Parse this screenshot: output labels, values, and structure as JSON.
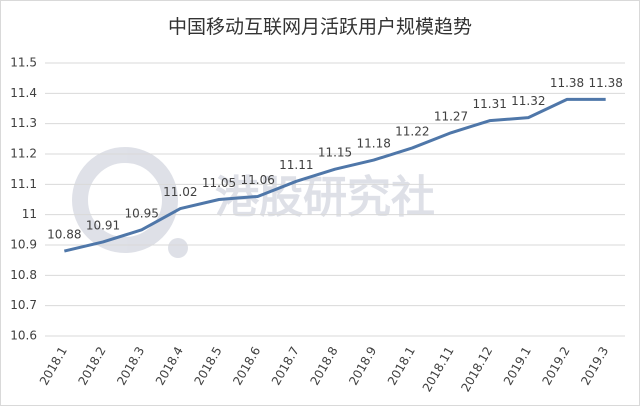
{
  "chart_data": {
    "type": "line",
    "title": "中国移动互联网月活跃用户规模趋势",
    "watermark": "港股研究社",
    "categories": [
      "2018.1",
      "2018.2",
      "2018.3",
      "2018.4",
      "2018.5",
      "2018.6",
      "2018.7",
      "2018.8",
      "2018.9",
      "2018.1",
      "2018.11",
      "2018.12",
      "2019.1",
      "2019.2",
      "2019.3"
    ],
    "values": [
      10.88,
      10.91,
      10.95,
      11.02,
      11.05,
      11.06,
      11.11,
      11.15,
      11.18,
      11.22,
      11.27,
      11.31,
      11.32,
      11.38,
      11.38
    ],
    "color": "#4f77a9",
    "ylim": [
      10.6,
      11.5
    ],
    "yticks": [
      10.6,
      10.7,
      10.8,
      10.9,
      11,
      11.1,
      11.2,
      11.3,
      11.4,
      11.5
    ],
    "grid": true
  }
}
